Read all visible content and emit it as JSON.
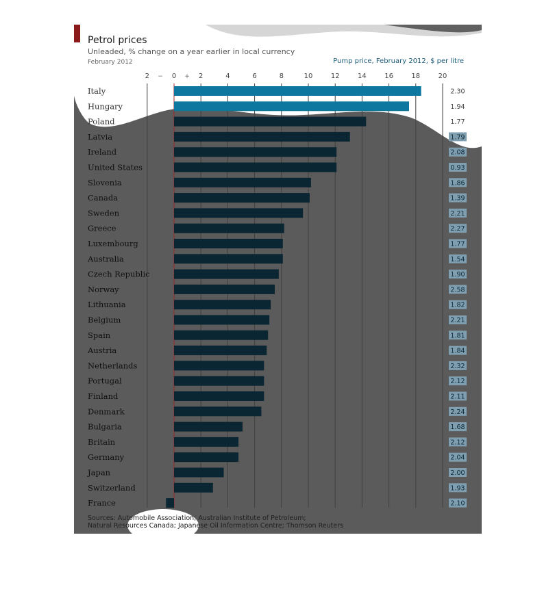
{
  "header": {
    "title": "Petrol prices",
    "subtitle": "Unleaded, % change on a year earlier in local currency",
    "date": "February 2012",
    "price_heading": "Pump price, February 2012, $ per litre"
  },
  "axis_labels": {
    "minus": "−",
    "plus": "+"
  },
  "footer": {
    "source_line1": "Sources: Automobile Association; Australian Institute of Petroleum;",
    "source_line2": "Natural Resources Canada; Japanese Oil Information Centre; Thomson Reuters"
  },
  "colors": {
    "bar_dark": "#0b2633",
    "bar_highlight": "#0d77a0",
    "background_dark": "#5b5b5b",
    "price_box": "#7f9fb0",
    "accent_red": "#8b1a1a",
    "zero_line": "#9c2a2a"
  },
  "chart_data": {
    "type": "bar",
    "orientation": "horizontal",
    "title": "Petrol prices",
    "subtitle": "Unleaded, % change on a year earlier in local currency",
    "xlim": [
      -2,
      20
    ],
    "xticks": [
      "2",
      "0",
      "2",
      "4",
      "6",
      "8",
      "10",
      "12",
      "14",
      "16",
      "18",
      "20"
    ],
    "grid": true,
    "categories": [
      "Italy",
      "Hungary",
      "Poland",
      "Latvia",
      "Ireland",
      "United States",
      "Slovenia",
      "Canada",
      "Sweden",
      "Greece",
      "Luxembourg",
      "Australia",
      "Czech Republic",
      "Norway",
      "Lithuania",
      "Belgium",
      "Spain",
      "Austria",
      "Netherlands",
      "Portugal",
      "Finland",
      "Denmark",
      "Bulgaria",
      "Britain",
      "Germany",
      "Japan",
      "Switzerland",
      "France"
    ],
    "values": [
      18.4,
      17.5,
      14.3,
      13.1,
      12.1,
      12.1,
      10.2,
      10.1,
      9.6,
      8.2,
      8.1,
      8.1,
      7.8,
      7.5,
      7.2,
      7.1,
      7.0,
      6.9,
      6.7,
      6.7,
      6.7,
      6.5,
      5.1,
      4.8,
      4.8,
      3.7,
      2.9,
      -0.6
    ],
    "pump_price_label": "Pump price, February 2012, $ per litre",
    "pump_prices": [
      "2.30",
      "1.94",
      "1.77",
      "1.79",
      "2.08",
      "0.93",
      "1.86",
      "1.39",
      "2.21",
      "2.27",
      "1.77",
      "1.54",
      "1.90",
      "2.58",
      "1.82",
      "2.21",
      "1.81",
      "1.84",
      "2.32",
      "2.12",
      "2.11",
      "2.24",
      "1.68",
      "2.12",
      "2.04",
      "2.00",
      "1.93",
      "2.10"
    ]
  }
}
